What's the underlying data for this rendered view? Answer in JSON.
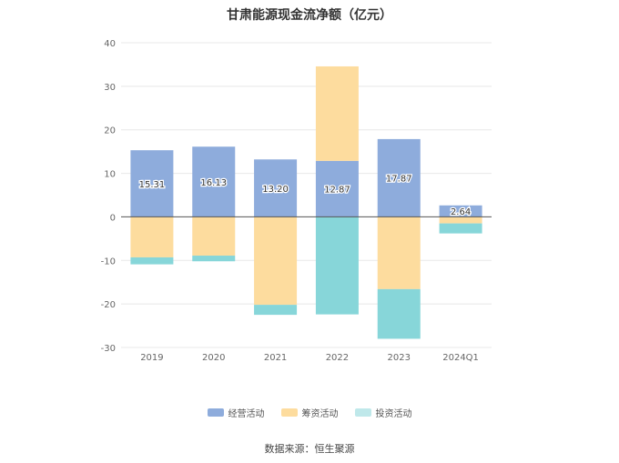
{
  "chart_data": {
    "type": "bar",
    "stacked": true,
    "title": "甘肃能源现金流净额（亿元）",
    "categories": [
      "2019",
      "2020",
      "2021",
      "2022",
      "2023",
      "2024Q1"
    ],
    "ylim": [
      -30,
      40
    ],
    "yticks": [
      40,
      30,
      20,
      10,
      0,
      -10,
      -20,
      -30
    ],
    "grid": true,
    "legend_position": "bottom",
    "series": [
      {
        "name": "经营活动",
        "color": "#8eacdc",
        "values": [
          15.31,
          16.13,
          13.2,
          12.87,
          17.87,
          2.64
        ],
        "labels": [
          "15.31",
          "16.13",
          "13.20",
          "12.87",
          "17.87",
          "2.64"
        ]
      },
      {
        "name": "筹资活动",
        "color": "#fddc9e",
        "values": [
          -9.3,
          -8.9,
          -20.2,
          21.7,
          -16.6,
          -1.5
        ]
      },
      {
        "name": "投资活动",
        "color": "#87d6d9",
        "values": [
          -1.6,
          -1.3,
          -2.3,
          -22.4,
          -11.4,
          -2.3
        ]
      }
    ]
  },
  "source": "数据来源：恒生聚源"
}
